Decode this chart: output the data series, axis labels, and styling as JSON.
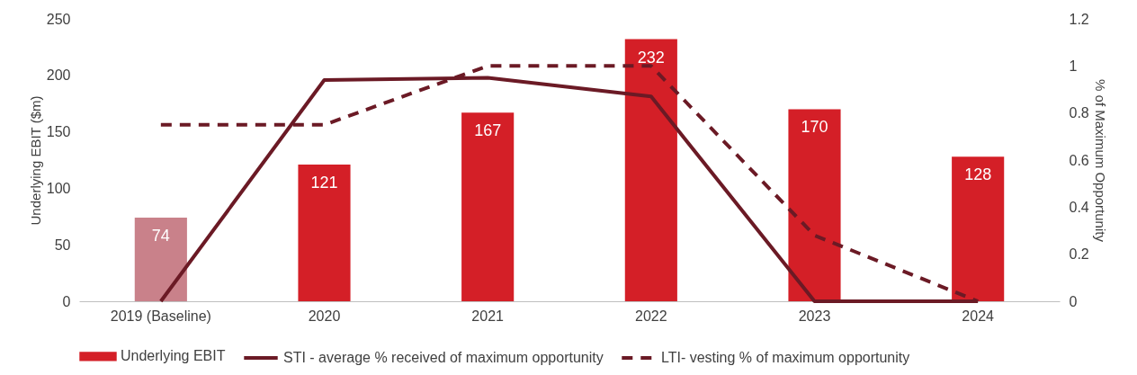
{
  "chart_data": {
    "type": "bar",
    "categories": [
      "2019 (Baseline)",
      "2020",
      "2021",
      "2022",
      "2023",
      "2024"
    ],
    "ylabel": "Underlying EBIT ($m)",
    "y2label": "% of Maximum Opportunity",
    "ylim": [
      0,
      250
    ],
    "yticks": [
      0,
      50,
      100,
      150,
      200,
      250
    ],
    "y2lim": [
      0,
      1.2
    ],
    "y2ticks": [
      0,
      0.2,
      0.4,
      0.6,
      0.8,
      1,
      1.2
    ],
    "series": [
      {
        "name": "Underlying EBIT",
        "color": "#d41f27",
        "colors": [
          "#c9818a",
          "#d41f27",
          "#d41f27",
          "#d41f27",
          "#d41f27",
          "#d41f27"
        ],
        "values": [
          74,
          121,
          167,
          232,
          170,
          128
        ],
        "value_labels": [
          "74",
          "121",
          "167",
          "232",
          "170",
          "128"
        ]
      },
      {
        "name": "STI - average % received of maximum opportunity",
        "type": "line",
        "axis": "y2",
        "color": "#6b1a25",
        "line_style": "solid",
        "values": [
          0,
          0.94,
          0.95,
          0.87,
          0,
          0
        ]
      },
      {
        "name": "LTI- vesting % of maximum opportunity",
        "type": "line",
        "axis": "y2",
        "color": "#6b1a25",
        "line_style": "dashed",
        "values": [
          0.75,
          0.75,
          1,
          1,
          0.28,
          0
        ]
      }
    ],
    "grid": false,
    "legend": "bottom"
  }
}
